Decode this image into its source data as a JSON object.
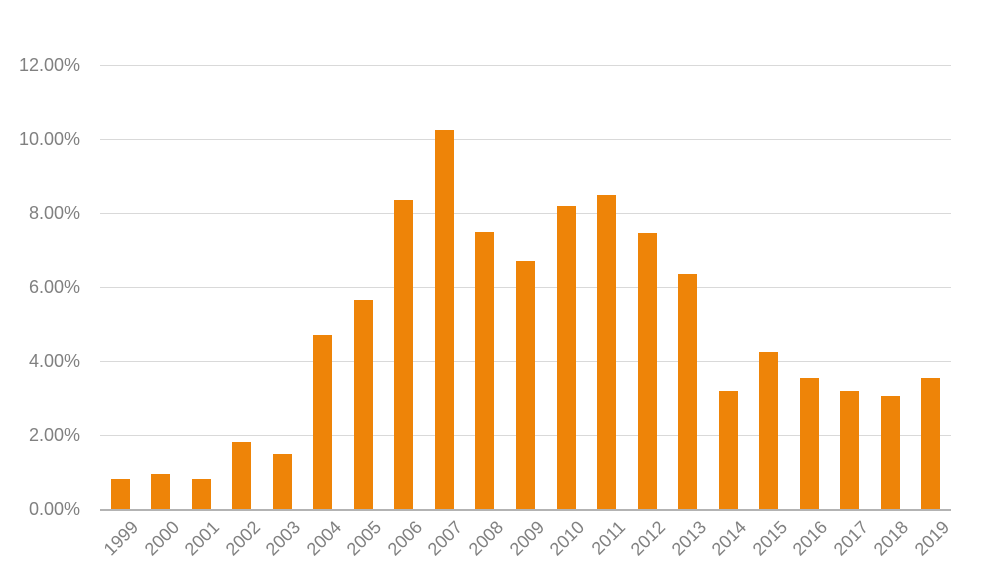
{
  "chart_data": {
    "type": "bar",
    "title": "",
    "xlabel": "",
    "ylabel": "",
    "categories": [
      "1999",
      "2000",
      "2001",
      "2002",
      "2003",
      "2004",
      "2005",
      "2006",
      "2007",
      "2008",
      "2009",
      "2010",
      "2011",
      "2012",
      "2013",
      "2014",
      "2015",
      "2016",
      "2017",
      "2018",
      "2019"
    ],
    "values": [
      0.8,
      0.95,
      0.8,
      1.8,
      1.5,
      4.7,
      5.65,
      8.35,
      10.25,
      7.5,
      6.7,
      8.2,
      8.5,
      7.45,
      6.35,
      3.2,
      4.25,
      3.55,
      3.2,
      3.05,
      3.55
    ],
    "value_unit": "percent",
    "ylim": [
      0,
      12
    ],
    "ytick_step": 2,
    "ytick_labels": [
      "0.00%",
      "2.00%",
      "4.00%",
      "6.00%",
      "8.00%",
      "10.00%",
      "12.00%"
    ],
    "grid": true,
    "legend": false,
    "bar_color": "#EE8408",
    "gridline_color": "#D9D9D9",
    "axis_line_color": "#B3B3B3",
    "label_color": "#808080"
  }
}
